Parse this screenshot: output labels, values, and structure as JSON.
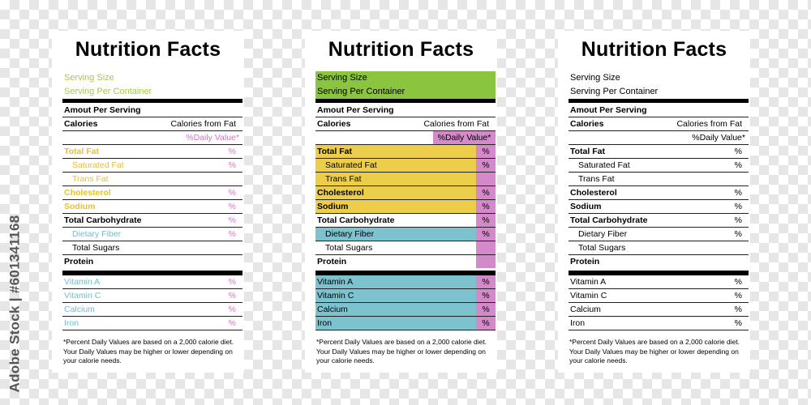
{
  "watermark": "Adobe Stock | #601341168",
  "labels": {
    "title": "Nutrition Facts",
    "serving_size": "Serving Size",
    "serving_per_container": "Serving Per Container",
    "amount_per_serving": "Amout Per Serving",
    "calories": "Calories",
    "calories_from_fat": "Calories from Fat",
    "daily_value": "%Daily Value*",
    "total_fat": "Total Fat",
    "saturated_fat": "Saturated Fat",
    "trans_fat": "Trans Fat",
    "cholesterol": "Cholesterol",
    "sodium": "Sodium",
    "total_carbohydrate": "Total Carbohydrate",
    "dietary_fiber": "Dietary Fiber",
    "total_sugars": "Total Sugars",
    "protein": "Protein",
    "vitamin_a": "Vitamin A",
    "vitamin_c": "Vitamin C",
    "calcium": "Calcium",
    "iron": "Iron",
    "percent": "%",
    "footnote_1": "*Percent Daily Values are based on a 2,000 calorie diet.",
    "footnote_2": "Your Daily Values may be higher or lower depending on",
    "footnote_3": "your calorie needs."
  },
  "colors": {
    "green": "#8bc53f",
    "yellow": "#ecce4a",
    "teal": "#7cc3cf",
    "magenta": "#d48ac8",
    "text_green": "#a6c94a",
    "text_yellow": "#e8c02e",
    "text_teal": "#6fbecb",
    "text_magenta": "#d276c2"
  }
}
